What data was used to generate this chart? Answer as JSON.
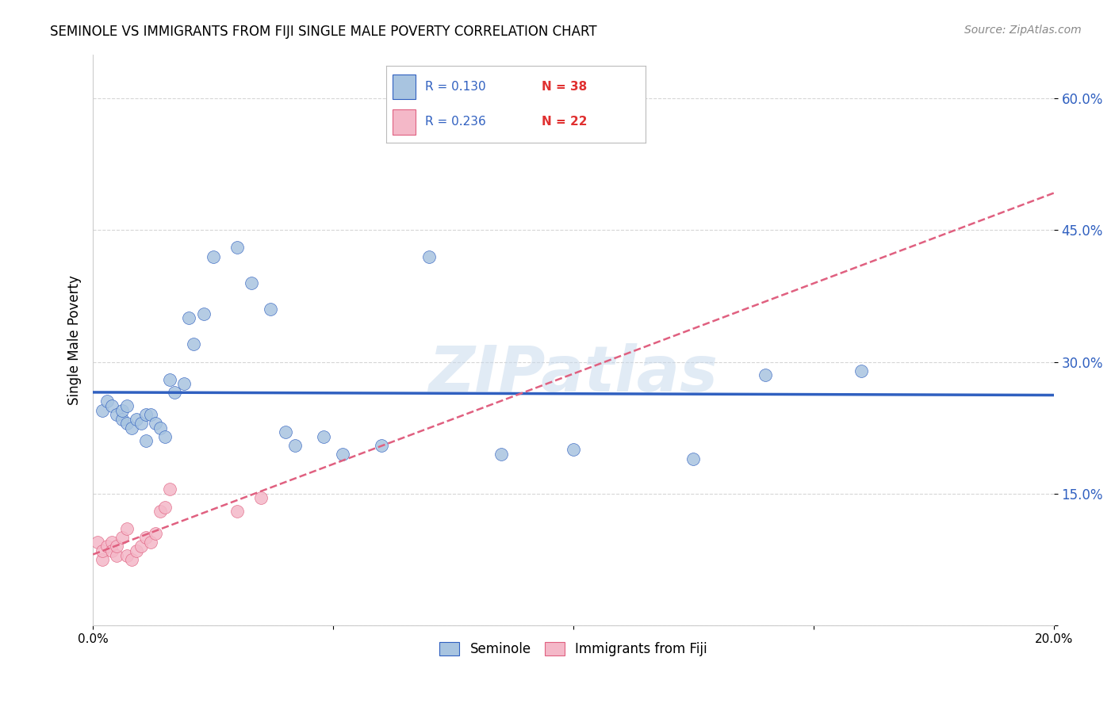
{
  "title": "SEMINOLE VS IMMIGRANTS FROM FIJI SINGLE MALE POVERTY CORRELATION CHART",
  "source": "Source: ZipAtlas.com",
  "ylabel": "Single Male Poverty",
  "xlim": [
    0.0,
    0.2
  ],
  "ylim": [
    0.0,
    0.65
  ],
  "yticks": [
    0.0,
    0.15,
    0.3,
    0.45,
    0.6
  ],
  "ytick_labels": [
    "",
    "15.0%",
    "30.0%",
    "45.0%",
    "60.0%"
  ],
  "xticks": [
    0.0,
    0.05,
    0.1,
    0.15,
    0.2
  ],
  "xtick_labels": [
    "0.0%",
    "",
    "",
    "",
    "20.0%"
  ],
  "seminole_color": "#a8c4e0",
  "fiji_color": "#f4b8c8",
  "line_blue_color": "#3060c0",
  "line_pink_color": "#e06080",
  "background_color": "#ffffff",
  "grid_color": "#cccccc",
  "watermark": "ZIPatlas",
  "seminole_x": [
    0.002,
    0.003,
    0.004,
    0.005,
    0.006,
    0.006,
    0.007,
    0.007,
    0.008,
    0.009,
    0.01,
    0.011,
    0.011,
    0.012,
    0.013,
    0.014,
    0.015,
    0.016,
    0.017,
    0.019,
    0.02,
    0.021,
    0.023,
    0.025,
    0.03,
    0.033,
    0.037,
    0.04,
    0.042,
    0.048,
    0.052,
    0.06,
    0.07,
    0.085,
    0.1,
    0.125,
    0.14,
    0.16
  ],
  "seminole_y": [
    0.245,
    0.255,
    0.25,
    0.24,
    0.235,
    0.245,
    0.25,
    0.23,
    0.225,
    0.235,
    0.23,
    0.24,
    0.21,
    0.24,
    0.23,
    0.225,
    0.215,
    0.28,
    0.265,
    0.275,
    0.35,
    0.32,
    0.355,
    0.42,
    0.43,
    0.39,
    0.36,
    0.22,
    0.205,
    0.215,
    0.195,
    0.205,
    0.42,
    0.195,
    0.2,
    0.19,
    0.285,
    0.29
  ],
  "fiji_x": [
    0.001,
    0.002,
    0.002,
    0.003,
    0.004,
    0.004,
    0.005,
    0.005,
    0.006,
    0.007,
    0.007,
    0.008,
    0.009,
    0.01,
    0.011,
    0.012,
    0.013,
    0.014,
    0.015,
    0.016,
    0.03,
    0.035
  ],
  "fiji_y": [
    0.095,
    0.075,
    0.085,
    0.09,
    0.095,
    0.085,
    0.08,
    0.09,
    0.1,
    0.11,
    0.08,
    0.075,
    0.085,
    0.09,
    0.1,
    0.095,
    0.105,
    0.13,
    0.135,
    0.155,
    0.13,
    0.145
  ]
}
